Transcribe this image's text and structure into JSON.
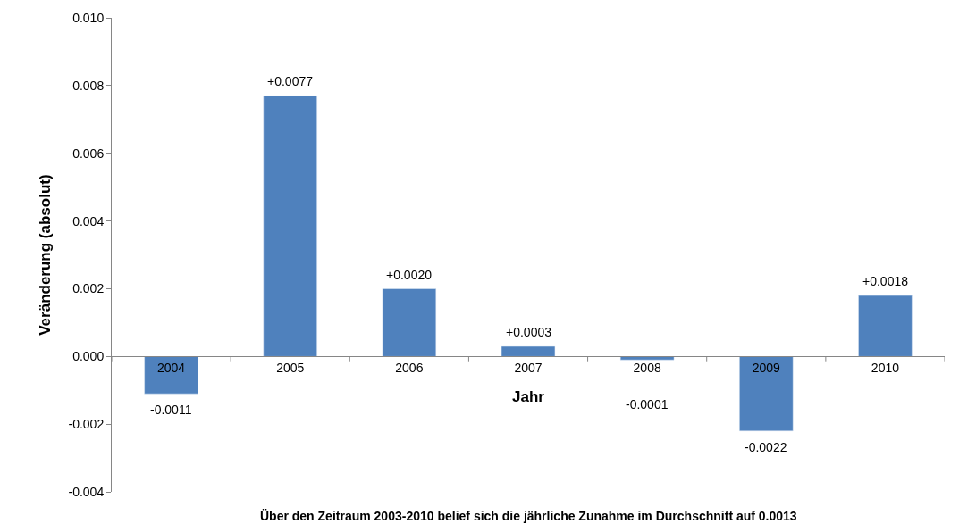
{
  "chart_data": {
    "type": "bar",
    "xlabel": "Jahr",
    "ylabel": "Veränderung (absolut)",
    "categories": [
      "2004",
      "2005",
      "2006",
      "2007",
      "2008",
      "2009",
      "2010"
    ],
    "values": [
      -0.0011,
      0.0077,
      0.002,
      0.0003,
      -0.0001,
      -0.0022,
      0.0018
    ],
    "value_labels": [
      "-0.0011",
      "+0.0077",
      "+0.0020",
      "+0.0003",
      "-0.0001",
      "-0.0022",
      "+0.0018"
    ],
    "color": "#4f81bd",
    "ylim": [
      -0.004,
      0.01
    ],
    "yticks": [
      "-0.004",
      "-0.002",
      "0.000",
      "0.002",
      "0.004",
      "0.006",
      "0.008",
      "0.010"
    ],
    "legend": false,
    "annotations": [
      "Über den Zeitraum 2003-2010 belief sich die jährliche Zunahme im Durchschnitt auf 0.0013"
    ]
  }
}
